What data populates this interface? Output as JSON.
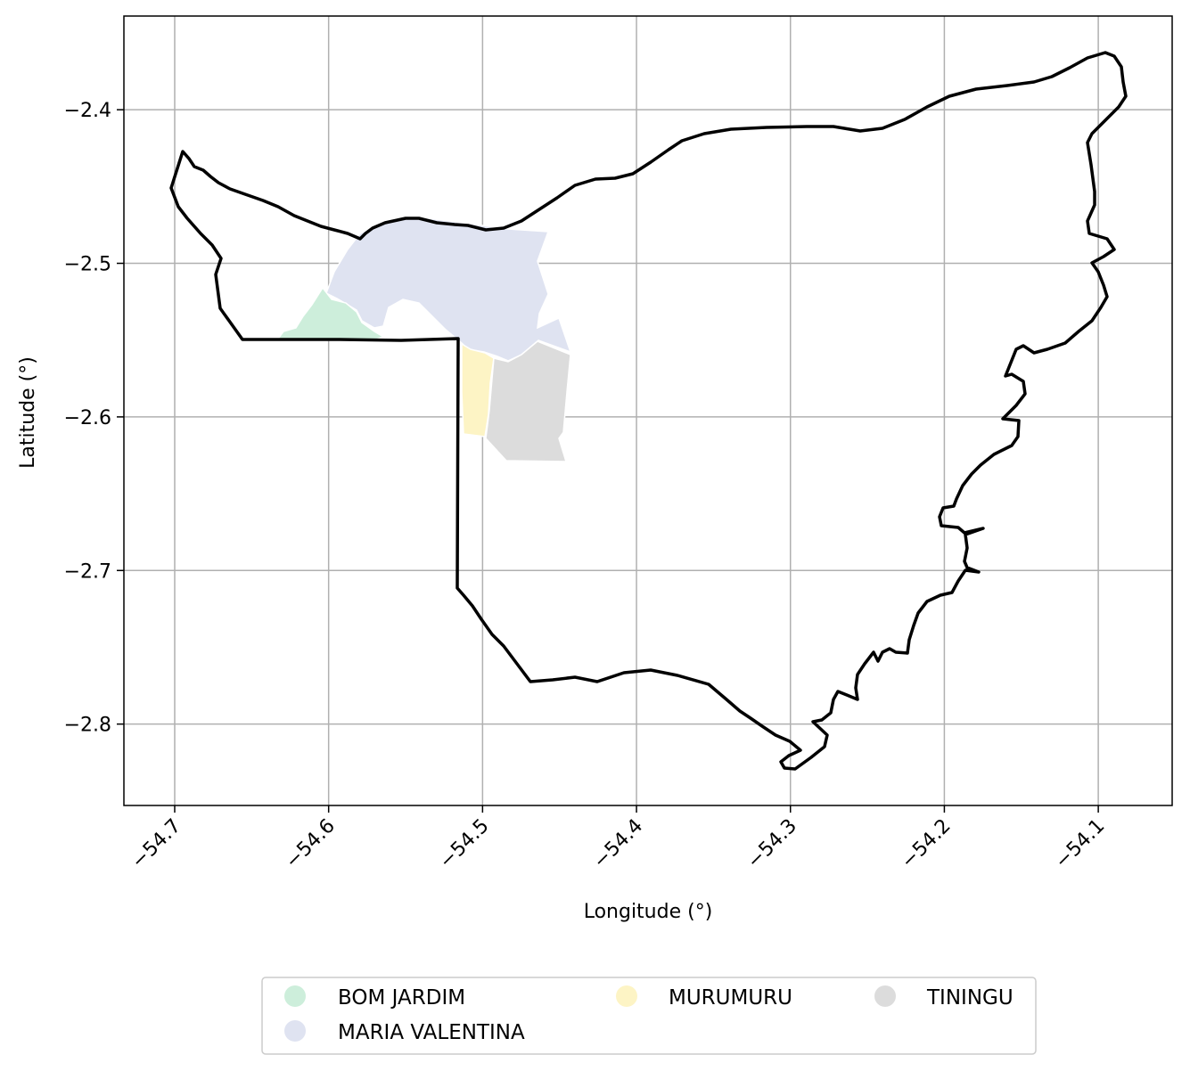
{
  "map": {
    "xlabel": "Longitude (°)",
    "ylabel": "Latitude (°)",
    "xlim": [
      -54.733,
      -54.052
    ],
    "ylim": [
      -2.853,
      -2.339
    ],
    "grid": true,
    "legend_placement": "bottom-center",
    "x_ticks": [
      {
        "value": -54.7,
        "label": "−54.7"
      },
      {
        "value": -54.6,
        "label": "−54.6"
      },
      {
        "value": -54.5,
        "label": "−54.5"
      },
      {
        "value": -54.4,
        "label": "−54.4"
      },
      {
        "value": -54.3,
        "label": "−54.3"
      },
      {
        "value": -54.2,
        "label": "−54.2"
      },
      {
        "value": -54.1,
        "label": "−54.1"
      }
    ],
    "y_ticks": [
      {
        "value": -2.4,
        "label": "−2.4"
      },
      {
        "value": -2.5,
        "label": "−2.5"
      },
      {
        "value": -2.6,
        "label": "−2.6"
      },
      {
        "value": -2.7,
        "label": "−2.7"
      },
      {
        "value": -2.8,
        "label": "−2.8"
      }
    ],
    "boundary_color": "#000000",
    "regions": [
      {
        "name": "BOM JARDIM",
        "color": "#cdeedb"
      },
      {
        "name": "MARIA VALENTINA",
        "color": "#dfe3f1"
      },
      {
        "name": "MURUMURU",
        "color": "#fdf4c5"
      },
      {
        "name": "TININGU",
        "color": "#dcdcdc"
      }
    ]
  }
}
